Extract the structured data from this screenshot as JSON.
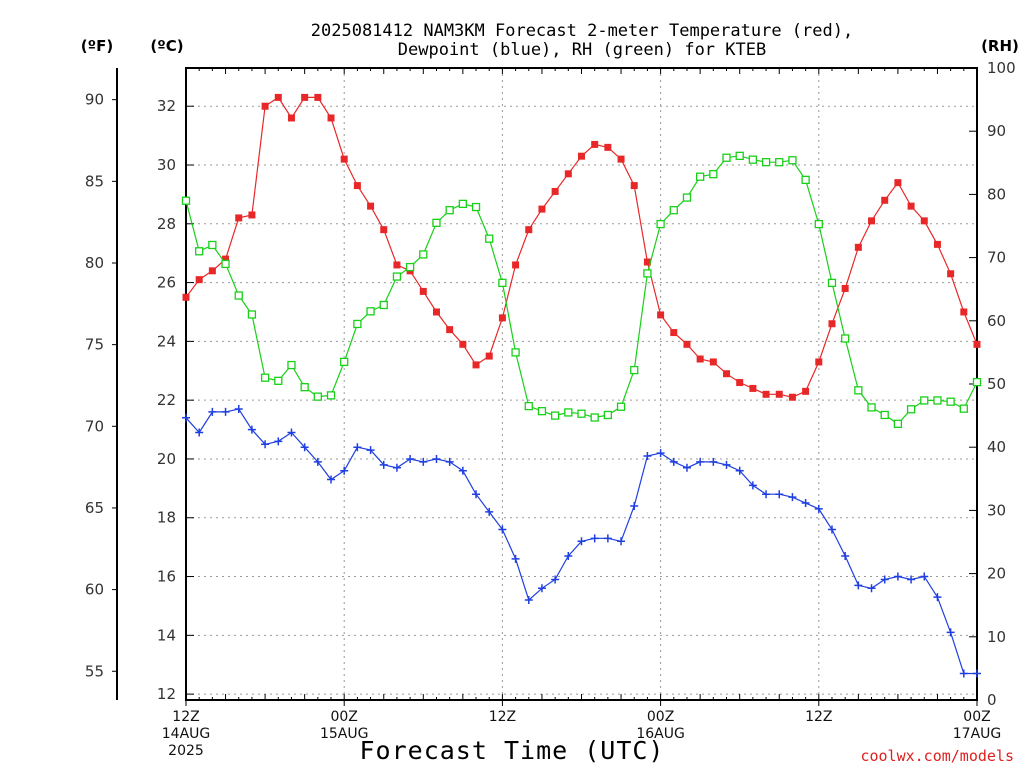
{
  "chart_data": {
    "type": "line",
    "title_line1": "2025081412 NAM3KM Forecast 2-meter Temperature (red),",
    "title_line2": "Dewpoint (blue), RH (green) for KTEB",
    "xlabel": "Forecast Time (UTC)",
    "credit": "coolwx.com/models",
    "unit_labels": {
      "fahrenheit": "(ºF)",
      "celsius": "(ºC)",
      "rh": "(RH)"
    },
    "x_range_hours": [
      0,
      60
    ],
    "x_ticks": [
      {
        "hour": 0,
        "line1": "12Z",
        "line2": "14AUG",
        "line3": "2025"
      },
      {
        "hour": 12,
        "line1": "00Z",
        "line2": "15AUG",
        "line3": ""
      },
      {
        "hour": 24,
        "line1": "12Z",
        "line2": "",
        "line3": ""
      },
      {
        "hour": 36,
        "line1": "00Z",
        "line2": "16AUG",
        "line3": ""
      },
      {
        "hour": 48,
        "line1": "12Z",
        "line2": "",
        "line3": ""
      },
      {
        "hour": 60,
        "line1": "00Z",
        "line2": "17AUG",
        "line3": ""
      }
    ],
    "celsius_range": [
      11.8,
      33.3
    ],
    "celsius_ticks": [
      "12",
      "14",
      "16",
      "18",
      "20",
      "22",
      "24",
      "26",
      "28",
      "30",
      "32"
    ],
    "fahrenheit_ticks": [
      "55",
      "60",
      "65",
      "70",
      "75",
      "80",
      "85",
      "90"
    ],
    "rh_range": [
      0,
      100
    ],
    "rh_ticks": [
      "0",
      "10",
      "20",
      "30",
      "40",
      "50",
      "60",
      "70",
      "80",
      "90",
      "100"
    ],
    "colors": {
      "temperature": "#e82828",
      "dewpoint": "#1f3fe0",
      "rh": "#18d018",
      "axis": "#000000",
      "grid": "#9a9a9a",
      "credit": "#e02020"
    },
    "series": [
      {
        "name": "Temperature",
        "unit": "C",
        "marker": "filled-square",
        "values": [
          25.5,
          26.1,
          26.4,
          26.8,
          28.2,
          28.3,
          32.0,
          32.3,
          31.6,
          32.3,
          32.3,
          31.6,
          30.2,
          29.3,
          28.6,
          27.8,
          26.6,
          26.4,
          25.7,
          25.0,
          24.4,
          23.9,
          23.2,
          23.5,
          24.8,
          26.6,
          27.8,
          28.5,
          29.1,
          29.7,
          30.3,
          30.7,
          30.6,
          30.2,
          29.3,
          26.7,
          24.9,
          24.3,
          23.9,
          23.4,
          23.3,
          22.9,
          22.6,
          22.4,
          22.2,
          22.2,
          22.1,
          22.3,
          23.3,
          24.6,
          25.8,
          27.2,
          28.1,
          28.8,
          29.4,
          28.6,
          28.1,
          27.3,
          26.3,
          25.0,
          23.9
        ]
      },
      {
        "name": "Dewpoint",
        "unit": "C",
        "marker": "plus",
        "values": [
          21.4,
          20.9,
          21.6,
          21.6,
          21.7,
          21.0,
          20.5,
          20.6,
          20.9,
          20.4,
          19.9,
          19.3,
          19.6,
          20.4,
          20.3,
          19.8,
          19.7,
          20.0,
          19.9,
          20.0,
          19.9,
          19.6,
          18.8,
          18.2,
          17.6,
          16.6,
          15.2,
          15.6,
          15.9,
          16.7,
          17.2,
          17.3,
          17.3,
          17.2,
          18.4,
          20.1,
          20.2,
          19.9,
          19.7,
          19.9,
          19.9,
          19.8,
          19.6,
          19.1,
          18.8,
          18.8,
          18.7,
          18.5,
          18.3,
          17.6,
          16.7,
          15.7,
          15.6,
          15.9,
          16.0,
          15.9,
          16.0,
          15.3,
          14.1,
          12.7,
          12.7
        ]
      },
      {
        "name": "RH",
        "unit": "%",
        "marker": "open-square",
        "values": [
          79,
          71,
          72,
          69,
          64,
          61,
          51,
          50.5,
          53,
          49.5,
          48,
          48.2,
          53.5,
          59.5,
          61.5,
          62.5,
          67,
          68.5,
          70.5,
          75.5,
          77.5,
          78.5,
          78,
          73,
          66,
          55,
          46.5,
          45.7,
          45,
          45.5,
          45.3,
          44.7,
          45.1,
          46.4,
          52.2,
          67.5,
          75.3,
          77.5,
          79.5,
          82.8,
          83.2,
          85.8,
          86.1,
          85.5,
          85.1,
          85.1,
          85.4,
          82.3,
          75.3,
          66,
          57.2,
          49,
          46.3,
          45.1,
          43.7,
          46,
          47.4,
          47.4,
          47.2,
          46.1,
          50.3
        ]
      }
    ]
  }
}
